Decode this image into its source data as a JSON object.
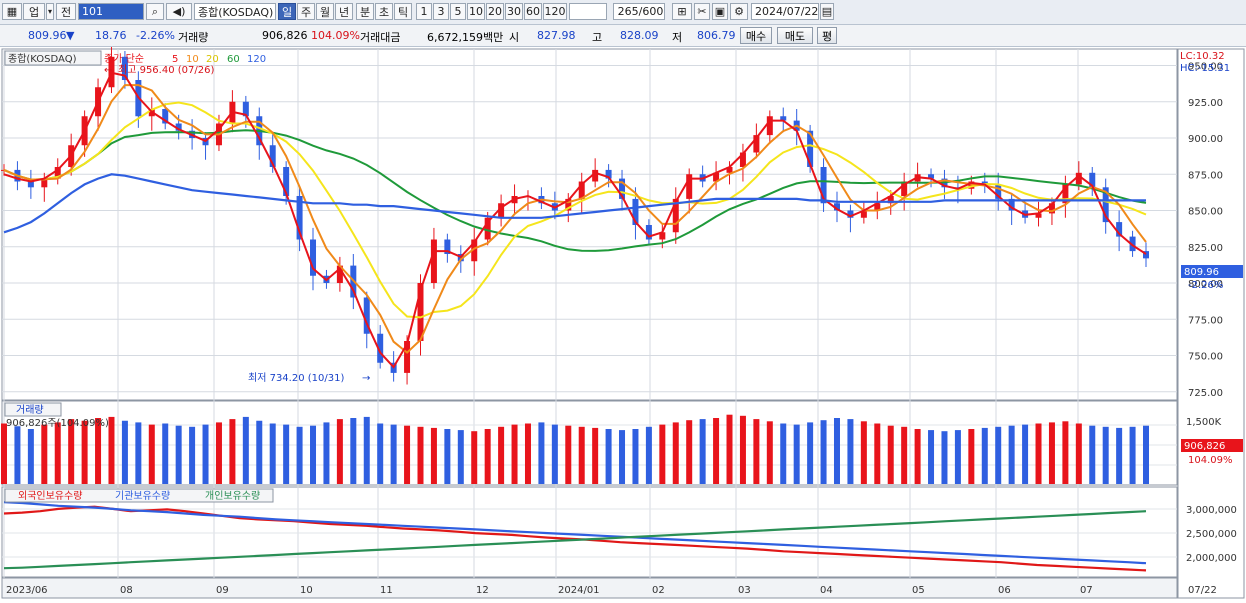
{
  "toolbar": {
    "market": "업",
    "prev": "전",
    "code": "101",
    "index_name": "종합(KOSDAQ)",
    "periods": [
      "일",
      "주",
      "월",
      "년",
      "분",
      "초",
      "틱"
    ],
    "active_period": "일",
    "intervals": [
      "1",
      "3",
      "5",
      "10",
      "20",
      "30",
      "60",
      "120"
    ],
    "count": "265/600",
    "date": "2024/07/22"
  },
  "infobar": {
    "price": "809.96",
    "change_arrow": "▼",
    "change": "18.76",
    "change_pct": "-2.26%",
    "volume_label": "거래량",
    "volume": "906,826",
    "volume_pct": "104.09%",
    "amount_label": "거래대금",
    "amount": "6,672,159백만",
    "open_label": "시",
    "open": "827.98",
    "high_label": "고",
    "high": "828.09",
    "low_label": "저",
    "low": "806.79",
    "buy_button": "매수",
    "sell_button": "매도",
    "eval_button": "평"
  },
  "colors": {
    "ma5": "#e8141b",
    "ma10": "#f08a1a",
    "ma20": "#f5e51c",
    "ma60": "#1f9a3a",
    "ma120": "#2f5fe0",
    "up": "#e8141b",
    "down": "#2f5fe0",
    "foreign": "#e01818",
    "institution": "#2f5fe0",
    "individual": "#2a8f56"
  },
  "price_panel": {
    "title": "종합(KOSDAQ)",
    "legend_prefix": "종가 단순",
    "ma_periods": [
      "5",
      "10",
      "20",
      "60",
      "120"
    ],
    "lc": "LC:10.32",
    "hc": "HC:-15.31",
    "high_marker": "최고 956.40 (07/26)",
    "low_marker": "최저 734.20 (10/31)",
    "current_price": "809.96",
    "current_change": "-2.26%"
  },
  "volume_panel": {
    "title": "거래량",
    "value": "906,826주(104.09%)",
    "axis_label": "1,500K",
    "current": "906,826",
    "current_pct": "104.09%"
  },
  "holdings_panel": {
    "series_names": [
      "외국인보유수량",
      "기관보유수량",
      "개인보유수량"
    ],
    "axis_labels": [
      "3,000,000",
      "2,500,000",
      "2,000,000"
    ]
  },
  "x_axis": {
    "labels": [
      "2023/06",
      "08",
      "09",
      "10",
      "11",
      "12",
      "2024/01",
      "02",
      "03",
      "04",
      "05",
      "06",
      "07",
      "07/22"
    ]
  },
  "chart_data": {
    "type": "line",
    "title": "종합(KOSDAQ)",
    "price_axis": {
      "ticks": [
        "950.00",
        "925.00",
        "900.00",
        "875.00",
        "850.00",
        "825.00",
        "800.00",
        "775.00",
        "750.00",
        "725.00"
      ],
      "ylim": [
        720,
        960
      ]
    },
    "x_labels": [
      "2023/06",
      "08",
      "09",
      "10",
      "11",
      "12",
      "2024/01",
      "02",
      "03",
      "04",
      "05",
      "06",
      "07"
    ],
    "close_series": {
      "name": "종가",
      "values": [
        878,
        870,
        866,
        872,
        880,
        895,
        915,
        935,
        956,
        940,
        915,
        920,
        910,
        905,
        900,
        895,
        910,
        925,
        915,
        895,
        880,
        860,
        830,
        805,
        800,
        812,
        790,
        765,
        745,
        738,
        760,
        800,
        830,
        820,
        815,
        830,
        845,
        855,
        860,
        860,
        855,
        850,
        858,
        870,
        878,
        872,
        858,
        840,
        830,
        835,
        858,
        875,
        870,
        876,
        880,
        890,
        902,
        915,
        912,
        905,
        880,
        855,
        850,
        845,
        850,
        855,
        860,
        870,
        875,
        872,
        866,
        865,
        870,
        868,
        858,
        850,
        845,
        848,
        855,
        868,
        876,
        866,
        842,
        832,
        822,
        817
      ],
      "x_positions_days": null
    },
    "ma_series": [
      {
        "name": "5",
        "values": [
          875,
          872,
          870,
          872,
          878,
          888,
          905,
          925,
          945,
          943,
          928,
          918,
          912,
          906,
          902,
          898,
          906,
          918,
          916,
          900,
          882,
          862,
          835,
          810,
          802,
          810,
          795,
          772,
          752,
          742,
          758,
          795,
          822,
          822,
          818,
          828,
          842,
          852,
          858,
          860,
          856,
          852,
          857,
          868,
          876,
          873,
          860,
          842,
          832,
          835,
          856,
          872,
          872,
          876,
          880,
          889,
          900,
          912,
          912,
          905,
          882,
          858,
          851,
          846,
          850,
          855,
          860,
          868,
          873,
          872,
          867,
          865,
          869,
          868,
          860,
          852,
          847,
          848,
          854,
          866,
          874,
          867,
          846,
          834,
          826,
          820
        ]
      },
      {
        "name": "120",
        "values": [
          835,
          838,
          842,
          848,
          855,
          862,
          868,
          872,
          875,
          874,
          872,
          870,
          868,
          866,
          864,
          863,
          862,
          861,
          860,
          859,
          858,
          857,
          856,
          855,
          855,
          855,
          854,
          854,
          853,
          853,
          852,
          851,
          850,
          849,
          848,
          847,
          846,
          845,
          845,
          845,
          845,
          846,
          847,
          848,
          849,
          850,
          851,
          852,
          853,
          854,
          855,
          856,
          857,
          858,
          858,
          858,
          858,
          858,
          858,
          858,
          857,
          857,
          856,
          856,
          856,
          856,
          856,
          856,
          856,
          856,
          857,
          857,
          857,
          857,
          857,
          857,
          857,
          857,
          857,
          857,
          857,
          857,
          857,
          857,
          857,
          857
        ]
      }
    ],
    "volume_values": [
      110,
      105,
      100,
      108,
      112,
      118,
      115,
      120,
      122,
      115,
      112,
      108,
      110,
      106,
      104,
      108,
      112,
      118,
      122,
      115,
      110,
      108,
      104,
      106,
      112,
      118,
      120,
      122,
      110,
      108,
      106,
      104,
      102,
      100,
      98,
      96,
      100,
      104,
      108,
      110,
      112,
      108,
      106,
      104,
      102,
      100,
      98,
      100,
      104,
      108,
      112,
      116,
      118,
      120,
      126,
      124,
      118,
      114,
      110,
      108,
      112,
      116,
      120,
      118,
      114,
      110,
      106,
      104,
      100,
      98,
      96,
      98,
      100,
      102,
      104,
      106,
      108,
      110,
      112,
      114,
      110,
      106,
      104,
      102,
      104,
      106
    ],
    "holdings": [
      {
        "name": "외국인보유수량",
        "values": [
          2.95,
          2.97,
          3.0,
          3.05,
          3.08,
          3.1,
          3.05,
          3.0,
          3.02,
          3.04,
          3.0,
          2.95,
          2.9,
          2.85,
          2.82,
          2.8,
          2.78,
          2.75,
          2.72,
          2.7,
          2.68,
          2.65,
          2.62,
          2.6,
          2.58,
          2.55,
          2.52,
          2.5,
          2.48,
          2.45,
          2.42,
          2.4,
          2.38,
          2.35,
          2.32,
          2.3,
          2.28,
          2.26,
          2.24,
          2.22,
          2.2,
          2.18,
          2.15,
          2.12,
          2.1,
          2.08,
          2.06,
          2.04,
          2.02,
          2.0,
          1.98,
          1.96,
          1.94,
          1.92,
          1.9,
          1.88,
          1.85,
          1.82,
          1.8,
          1.78,
          1.76,
          1.74,
          1.72,
          1.7
        ]
      },
      {
        "name": "기관보유수량",
        "values": [
          3.2,
          3.18,
          3.15,
          3.12,
          3.1,
          3.08,
          3.05,
          3.02,
          3.0,
          2.98,
          2.95,
          2.92,
          2.9,
          2.88,
          2.85,
          2.82,
          2.8,
          2.78,
          2.76,
          2.74,
          2.72,
          2.7,
          2.68,
          2.66,
          2.64,
          2.62,
          2.6,
          2.58,
          2.56,
          2.54,
          2.52,
          2.5,
          2.48,
          2.46,
          2.44,
          2.42,
          2.4,
          2.38,
          2.36,
          2.34,
          2.32,
          2.3,
          2.28,
          2.26,
          2.24,
          2.22,
          2.2,
          2.18,
          2.16,
          2.14,
          2.12,
          2.1,
          2.08,
          2.06,
          2.04,
          2.02,
          2.0,
          1.98,
          1.96,
          1.94,
          1.92,
          1.9,
          1.88,
          1.86
        ]
      },
      {
        "name": "개인보유수량",
        "values": [
          1.75,
          1.76,
          1.78,
          1.8,
          1.82,
          1.84,
          1.86,
          1.88,
          1.9,
          1.92,
          1.94,
          1.96,
          1.98,
          2.0,
          2.02,
          2.04,
          2.06,
          2.08,
          2.1,
          2.12,
          2.14,
          2.16,
          2.18,
          2.2,
          2.22,
          2.24,
          2.26,
          2.28,
          2.3,
          2.32,
          2.34,
          2.36,
          2.38,
          2.4,
          2.42,
          2.44,
          2.46,
          2.48,
          2.5,
          2.52,
          2.54,
          2.56,
          2.58,
          2.6,
          2.62,
          2.64,
          2.66,
          2.68,
          2.7,
          2.72,
          2.74,
          2.76,
          2.78,
          2.8,
          2.82,
          2.84,
          2.86,
          2.88,
          2.9,
          2.92,
          2.94,
          2.96,
          2.98,
          3.0
        ]
      }
    ]
  }
}
